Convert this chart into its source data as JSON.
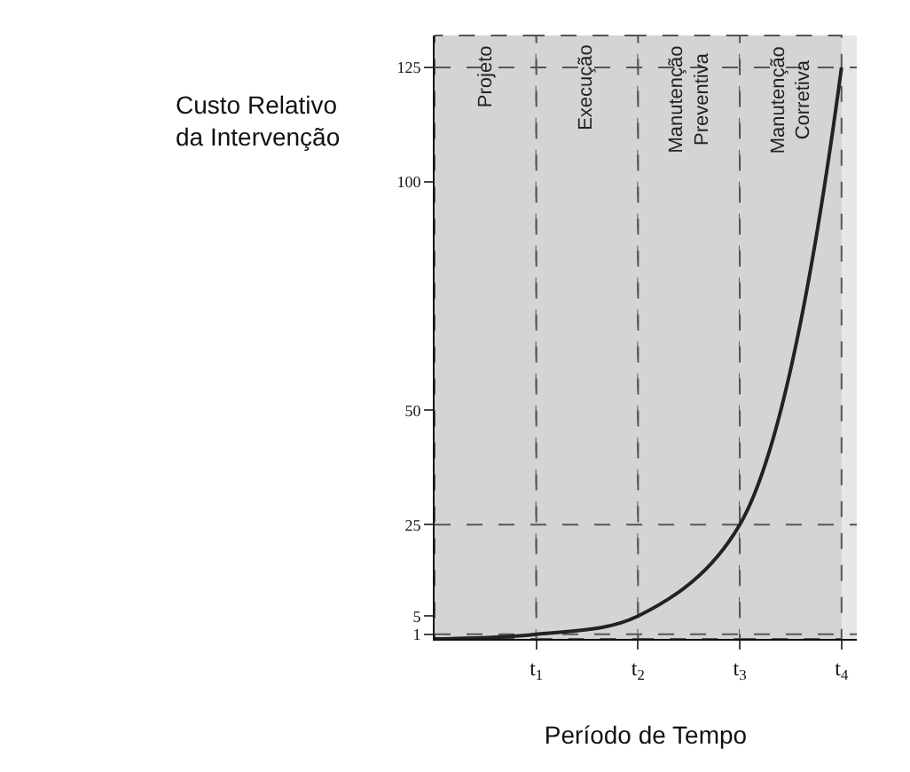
{
  "chart_data": {
    "type": "line",
    "xlabel": "Período de Tempo",
    "ylabel": "Custo Relativo\nda Intervenção",
    "x": [
      0,
      1,
      2,
      3,
      4
    ],
    "series": [
      {
        "color": "#222222",
        "values": [
          0,
          1,
          5,
          25,
          125
        ]
      }
    ],
    "xlim": [
      0,
      4.15
    ],
    "xticks": [
      {
        "value": 1,
        "label": "t$_{1}$"
      },
      {
        "value": 2,
        "label": "t$_{2}$"
      },
      {
        "value": 3,
        "label": "t$_{3}$"
      },
      {
        "value": 4,
        "label": "t$_{4}$"
      }
    ],
    "ylim": [
      0,
      132
    ],
    "yticks": [
      1,
      5,
      25,
      50,
      100,
      125
    ],
    "grid": false,
    "marker": "none",
    "line_style": "solid",
    "bands": [
      {
        "axis": "x",
        "from": 0,
        "to": 1,
        "label": "Projeto",
        "color": "#d4d4d4"
      },
      {
        "axis": "x",
        "from": 1,
        "to": 2,
        "label": "Execução",
        "color": "#d4d4d4"
      },
      {
        "axis": "x",
        "from": 2,
        "to": 3,
        "label": "Manutenção\nPreventiva",
        "color": "#d4d4d4"
      },
      {
        "axis": "x",
        "from": 3,
        "to": 4,
        "label": "Manutenção\nCorretiva",
        "color": "#d4d4d4"
      }
    ],
    "ref_lines": [
      {
        "axis": "y",
        "value": 1,
        "line_style": "dashed"
      },
      {
        "axis": "y",
        "value": 25,
        "line_style": "dashed"
      },
      {
        "axis": "y",
        "value": 125,
        "line_style": "dashed"
      }
    ]
  }
}
